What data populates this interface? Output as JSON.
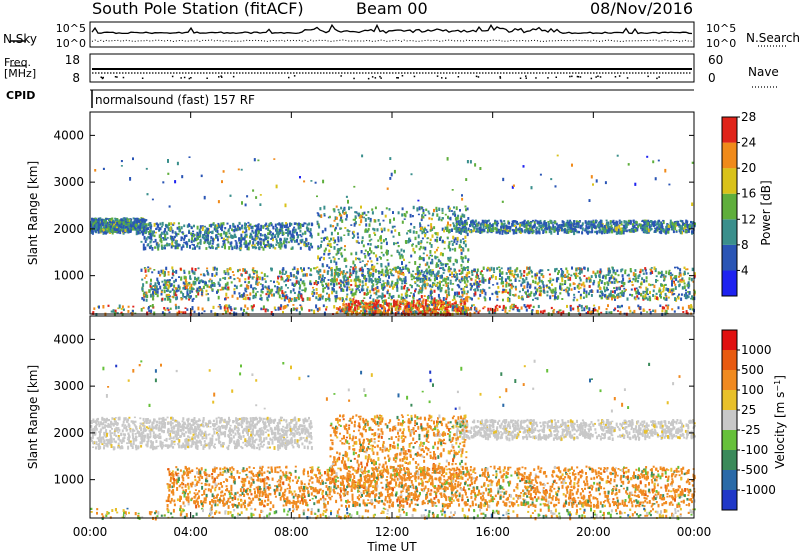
{
  "header": {
    "station": "South Pole Station (fitACF)",
    "beam": "Beam 00",
    "date": "08/Nov/2016"
  },
  "panel_labels": {
    "nsky": "N.Sky",
    "nsearch": "N.Search",
    "freq_line1": "Freq.",
    "freq_line2": "[MHz]",
    "nave": "Nave",
    "cpid": "CPID",
    "cpid_value": "normalsound (fast) 157 RF"
  },
  "chart_data": [
    {
      "type": "line",
      "name": "noise",
      "left_ticks": [
        "10^5",
        "10^0"
      ],
      "right_ticks": [
        "10^5",
        "10^0"
      ]
    },
    {
      "type": "scatter",
      "name": "frequency-nave",
      "left_ticks": [
        "18",
        "8"
      ],
      "right_ticks": [
        "60",
        "0"
      ]
    },
    {
      "type": "heatmap",
      "name": "power",
      "ylabel": "Slant Range [km]",
      "ylim": [
        180,
        4500
      ],
      "y_ticks": [
        1000,
        2000,
        3000,
        4000
      ],
      "colorbar": {
        "label": "Power [dB]",
        "levels": [
          "4",
          "8",
          "12",
          "16",
          "20",
          "24",
          "28"
        ],
        "colors": [
          "#1e22f0",
          "#2a55b5",
          "#3a8f8c",
          "#5fae3c",
          "#d9c21a",
          "#f08a1a",
          "#e0241a"
        ]
      }
    },
    {
      "type": "heatmap",
      "name": "velocity",
      "ylabel": "Slant Range [km]",
      "ylim": [
        180,
        4500
      ],
      "y_ticks": [
        1000,
        2000,
        3000,
        4000
      ],
      "xlabel": "Time UT",
      "x_ticks": [
        "00:00",
        "04:00",
        "08:00",
        "12:00",
        "16:00",
        "20:00",
        "00:00"
      ],
      "colorbar": {
        "label": "Velocity [m s^-1]",
        "levels": [
          "1000",
          "500",
          "100",
          "25",
          "-25",
          "-100",
          "-500",
          "-1000"
        ],
        "colors": [
          "#2038c8",
          "#2a6aa8",
          "#3a8a5a",
          "#66c03a",
          "#c8c8c8",
          "#e8c02a",
          "#f08a20",
          "#e85a10",
          "#e01010"
        ]
      }
    }
  ]
}
